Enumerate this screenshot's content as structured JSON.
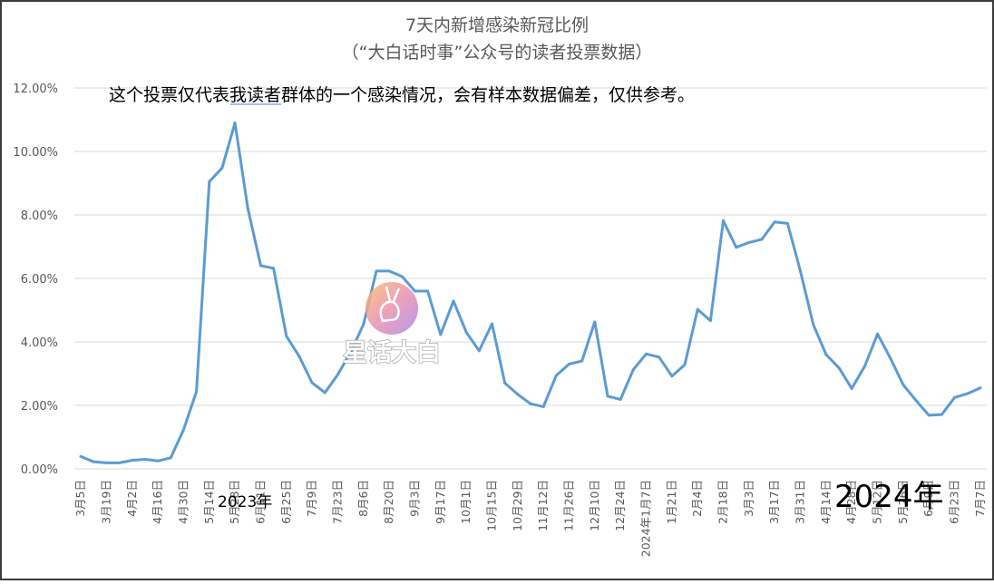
{
  "chart_data": {
    "type": "line",
    "title": "7天内新增感染新冠比例",
    "subtitle": "（“大白话时事”公众号的读者投票数据）",
    "note": "这个投票仅代表我读者群体的一个感染情况，会有样本数据偏差，仅供参考。",
    "year_labels": [
      "2023年",
      "2024年"
    ],
    "watermark": "星话大白",
    "xlabel": "",
    "ylabel": "",
    "ylim": [
      0,
      0.12
    ],
    "y_ticks": [
      "0.00%",
      "2.00%",
      "4.00%",
      "6.00%",
      "8.00%",
      "10.00%",
      "12.00%"
    ],
    "grid": true,
    "line_color": "#5b9bd5",
    "x_tick_labels": [
      "3月5日",
      "3月19日",
      "4月2日",
      "4月16日",
      "4月30日",
      "5月14日",
      "5月28日",
      "6月11日",
      "6月25日",
      "7月9日",
      "7月23日",
      "8月6日",
      "8月20日",
      "9月3日",
      "9月17日",
      "10月1日",
      "10月15日",
      "10月29日",
      "11月12日",
      "11月26日",
      "12月10日",
      "12月24日",
      "2024年1月7日",
      "1月21日",
      "2月4日",
      "2月18日",
      "3月3日",
      "3月17日",
      "3月31日",
      "4月14日",
      "4月28日",
      "5月12日",
      "5月26日",
      "6月9日",
      "6月23日",
      "7月7日"
    ],
    "values": [
      0.0039,
      0.0022,
      0.0019,
      0.0019,
      0.0027,
      0.003,
      0.0025,
      0.0035,
      0.0123,
      0.0243,
      0.0905,
      0.0948,
      0.109,
      0.082,
      0.064,
      0.0632,
      0.0418,
      0.0354,
      0.0271,
      0.024,
      0.0297,
      0.0368,
      0.0455,
      0.0623,
      0.0623,
      0.0606,
      0.056,
      0.056,
      0.0423,
      0.0529,
      0.043,
      0.0372,
      0.0457,
      0.027,
      0.0235,
      0.0205,
      0.0196,
      0.0294,
      0.033,
      0.034,
      0.0463,
      0.0229,
      0.0219,
      0.0313,
      0.0362,
      0.0352,
      0.0292,
      0.0328,
      0.0502,
      0.0467,
      0.0782,
      0.0698,
      0.0713,
      0.0723,
      0.0778,
      0.0773,
      0.0623,
      0.0455,
      0.036,
      0.0318,
      0.0253,
      0.0323,
      0.0425,
      0.0349,
      0.0265,
      0.0215,
      0.0169,
      0.0171,
      0.0225,
      0.0237,
      0.0255
    ]
  }
}
